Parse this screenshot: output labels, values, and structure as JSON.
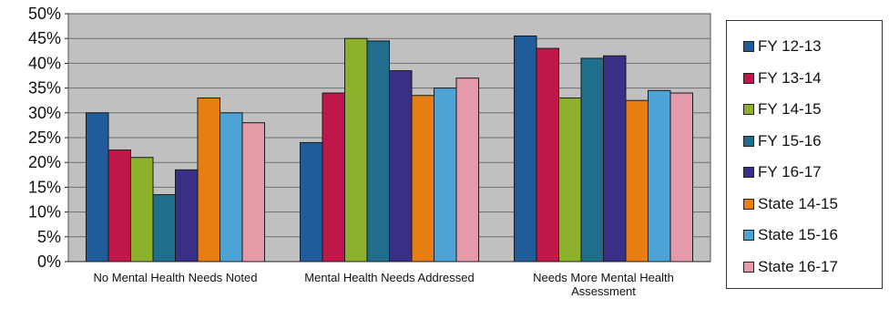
{
  "chart_data": {
    "type": "bar",
    "categories": [
      "No Mental Health Needs Noted",
      "Mental Health Needs Addressed",
      "Needs More Mental Health Assessment"
    ],
    "category_lines": [
      [
        "No Mental Health Needs Noted"
      ],
      [
        "Mental Health Needs Addressed"
      ],
      [
        "Needs More Mental Health",
        "Assessment"
      ]
    ],
    "series": [
      {
        "name": "FY 12-13",
        "color": "#1F5C99",
        "values": [
          30,
          24,
          45.5
        ]
      },
      {
        "name": "FY 13-14",
        "color": "#C0174A",
        "values": [
          22.5,
          34,
          43
        ]
      },
      {
        "name": "FY 14-15",
        "color": "#8DB12C",
        "values": [
          21,
          45,
          33
        ]
      },
      {
        "name": "FY 15-16",
        "color": "#1E6E8C",
        "values": [
          13.5,
          44.5,
          41
        ]
      },
      {
        "name": "FY 16-17",
        "color": "#3A2F86",
        "values": [
          18.5,
          38.5,
          41.5
        ]
      },
      {
        "name": "State 14-15",
        "color": "#E67E12",
        "values": [
          33,
          33.5,
          32.5
        ]
      },
      {
        "name": "State 15-16",
        "color": "#4DA3D4",
        "values": [
          30,
          35,
          34.5
        ]
      },
      {
        "name": "State 16-17",
        "color": "#E59AAA",
        "values": [
          28,
          37,
          34
        ]
      }
    ],
    "ylim": [
      0,
      50
    ],
    "yticks": [
      "0%",
      "5%",
      "10%",
      "15%",
      "20%",
      "25%",
      "30%",
      "35%",
      "40%",
      "45%",
      "50%"
    ],
    "grid": true,
    "legend": "right",
    "plot_background": "#C0C0C0"
  }
}
